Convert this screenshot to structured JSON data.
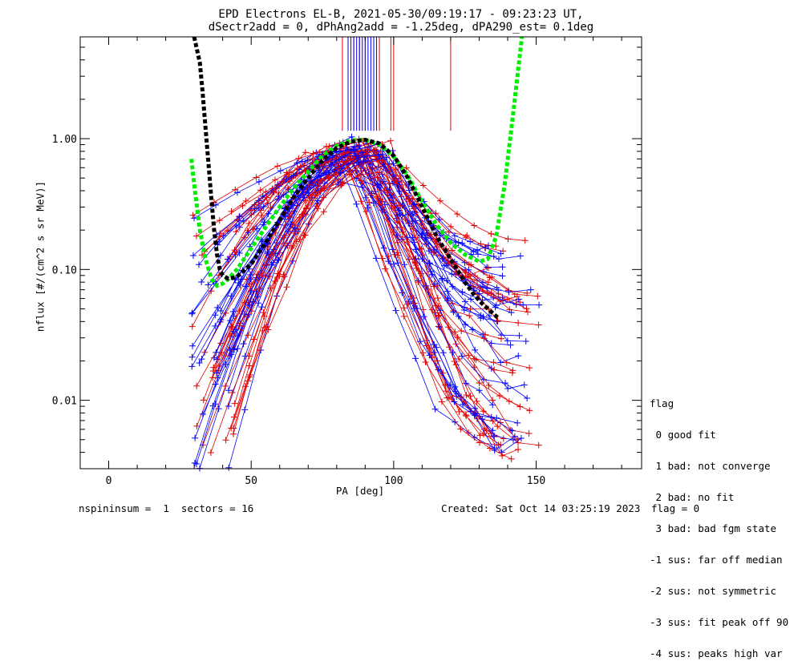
{
  "title": {
    "line1": "EPD Electrons EL-B, 2021-05-30/09:19:17 - 09:23:23 UT,",
    "line2": "dSectr2add = 0, dPhAng2add = -1.25deg, dPA290_est=   0.1deg"
  },
  "footer": {
    "left": "nspininsum =  1  sectors = 16",
    "created": "Created: Sat Oct 14 03:25:19 2023",
    "flag": "flag = 0"
  },
  "legend": {
    "title": "flag",
    "items": [
      " 0 good fit",
      " 1 bad: not converge",
      " 2 bad: no fit",
      " 3 bad: bad fgm state",
      "-1 sus: far off median",
      "-2 sus: not symmetric",
      "-3 sus: fit peak off 90",
      "-4 sus: peaks high var"
    ]
  },
  "chart_data": {
    "type": "line",
    "xlabel": "PA [deg]",
    "ylabel": "nflux [#/(cm^2 s sr MeV)]",
    "xlim": [
      -10,
      187
    ],
    "ylim": [
      0.003,
      6
    ],
    "yscale": "log",
    "x_ticks": [
      0,
      50,
      100,
      150
    ],
    "y_ticks": [
      {
        "value": 0.01,
        "label": "0.01"
      },
      {
        "value": 0.1,
        "label": "0.10"
      },
      {
        "value": 1.0,
        "label": "1.00"
      }
    ],
    "colors": {
      "red": "#e00000",
      "blue": "#0000ff",
      "green": "#00ee00",
      "black": "#000000"
    },
    "fit_curves": [
      {
        "name": "",
        "color": "#00ee00",
        "style": "dotted",
        "x": [
          29,
          30,
          32,
          34,
          36,
          38,
          40,
          42,
          45,
          50,
          55,
          60,
          65,
          70,
          75,
          80,
          85,
          90,
          95,
          100,
          105,
          110,
          115,
          120,
          125,
          130,
          133,
          136,
          139,
          142,
          145
        ],
        "y": [
          0.7,
          0.45,
          0.2,
          0.12,
          0.085,
          0.075,
          0.078,
          0.085,
          0.1,
          0.145,
          0.21,
          0.3,
          0.42,
          0.56,
          0.74,
          0.88,
          0.97,
          0.98,
          0.9,
          0.73,
          0.52,
          0.33,
          0.22,
          0.16,
          0.13,
          0.115,
          0.12,
          0.18,
          0.45,
          1.6,
          6.0
        ]
      },
      {
        "name": "",
        "color": "#000000",
        "style": "dotted",
        "x": [
          30,
          32,
          33,
          34,
          35,
          36,
          37,
          38,
          39,
          40,
          42,
          45,
          50,
          55,
          60,
          65,
          70,
          75,
          80,
          85,
          90,
          95,
          100,
          105,
          110,
          115,
          120,
          125,
          128,
          131,
          134,
          137
        ],
        "y": [
          6.0,
          3.8,
          2.2,
          1.2,
          0.65,
          0.35,
          0.2,
          0.13,
          0.1,
          0.09,
          0.085,
          0.088,
          0.11,
          0.16,
          0.24,
          0.36,
          0.5,
          0.68,
          0.85,
          0.95,
          0.98,
          0.92,
          0.74,
          0.5,
          0.3,
          0.18,
          0.12,
          0.08,
          0.065,
          0.055,
          0.048,
          0.042
        ]
      }
    ],
    "peak_markers": {
      "red_x": [
        82,
        86,
        88,
        90,
        93,
        95,
        99,
        100,
        120
      ],
      "blue_x": [
        84,
        85,
        86,
        87,
        88,
        89,
        90,
        91,
        92,
        93,
        94
      ],
      "y_top": 6.0,
      "y_bottom": 1.15
    },
    "sweeps": {
      "count": 60,
      "symbol": "+",
      "pa_left_range": [
        29,
        45
      ],
      "pa_right_range": [
        133,
        151
      ],
      "flux_left_range": [
        0.003,
        0.3
      ],
      "flux_right_range": [
        0.003,
        0.2
      ],
      "peak_range": [
        0.7,
        1.05
      ]
    }
  }
}
